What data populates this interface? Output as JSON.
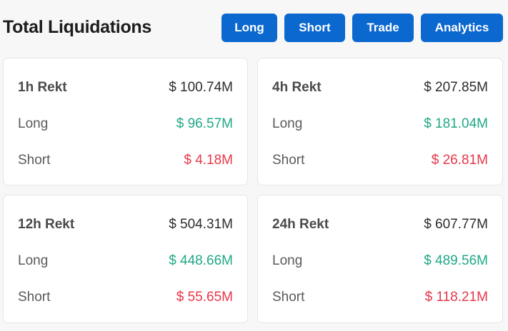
{
  "header": {
    "title": "Total Liquidations",
    "buttons": {
      "long": "Long",
      "short": "Short",
      "trade": "Trade",
      "analytics": "Analytics"
    }
  },
  "cards": [
    {
      "period": "1h Rekt",
      "total": "$ 100.74M",
      "long_label": "Long",
      "long_value": "$ 96.57M",
      "short_label": "Short",
      "short_value": "$ 4.18M"
    },
    {
      "period": "4h Rekt",
      "total": "$ 207.85M",
      "long_label": "Long",
      "long_value": "$ 181.04M",
      "short_label": "Short",
      "short_value": "$ 26.81M"
    },
    {
      "period": "12h Rekt",
      "total": "$ 504.31M",
      "long_label": "Long",
      "long_value": "$ 448.66M",
      "short_label": "Short",
      "short_value": "$ 55.65M"
    },
    {
      "period": "24h Rekt",
      "total": "$ 607.77M",
      "long_label": "Long",
      "long_value": "$ 489.56M",
      "short_label": "Short",
      "short_value": "$ 118.21M"
    }
  ],
  "colors": {
    "button": "#0b68cf",
    "long": "#1fa886",
    "short": "#e6384a",
    "background": "#f7f7f7"
  }
}
